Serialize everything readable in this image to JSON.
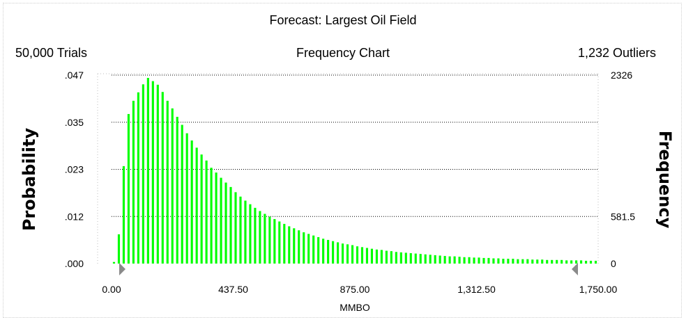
{
  "header": {
    "title": "Forecast: Largest Oil Field",
    "trials": "50,000 Trials",
    "subtitle": "Frequency Chart",
    "outliers": "1,232 Outliers"
  },
  "colors": {
    "bars": "#00ff00",
    "grid": "#000000",
    "markers": "#808080"
  },
  "chart_data": {
    "type": "bar",
    "title": "Forecast: Largest Oil Field",
    "subtitle": "Frequency Chart",
    "xlabel": "MMBO",
    "ylabel_left": "Probability",
    "ylabel_right": "Frequency",
    "xlim": [
      0,
      1750
    ],
    "ylim": [
      0,
      0.047
    ],
    "x_ticks": [
      "0.00",
      "437.50",
      "875.00",
      "1,312.50",
      "1,750.00"
    ],
    "y_ticks_left": [
      ".000",
      ".012",
      ".023",
      ".035",
      ".047"
    ],
    "y_ticks_right": [
      "0",
      "581.5",
      "2326"
    ],
    "grid": "dotted horizontal",
    "bin_width": 17.5,
    "series": [
      {
        "values": [
          0.0004,
          0.0073,
          0.0243,
          0.0373,
          0.0406,
          0.0427,
          0.0447,
          0.0463,
          0.0455,
          0.0446,
          0.0428,
          0.0406,
          0.0387,
          0.0366,
          0.0346,
          0.0325,
          0.0307,
          0.0289,
          0.0272,
          0.0257,
          0.0239,
          0.0227,
          0.0214,
          0.0202,
          0.0191,
          0.0178,
          0.0167,
          0.0157,
          0.0148,
          0.0139,
          0.0131,
          0.0124,
          0.0117,
          0.0111,
          0.0105,
          0.0099,
          0.0093,
          0.0088,
          0.0083,
          0.0078,
          0.0074,
          0.007,
          0.0066,
          0.0062,
          0.0059,
          0.0056,
          0.0053,
          0.005,
          0.0048,
          0.0046,
          0.0043,
          0.0041,
          0.0039,
          0.0037,
          0.0035,
          0.0034,
          0.0032,
          0.0031,
          0.0029,
          0.0028,
          0.0027,
          0.0026,
          0.0025,
          0.0024,
          0.0023,
          0.0022,
          0.0021,
          0.002,
          0.0019,
          0.0018,
          0.0018,
          0.0017,
          0.0016,
          0.0016,
          0.0015,
          0.0015,
          0.0014,
          0.0014,
          0.0013,
          0.0013,
          0.0012,
          0.0012,
          0.0012,
          0.0011,
          0.0011,
          0.0011,
          0.001,
          0.001,
          0.001,
          0.0009,
          0.0009,
          0.0009,
          0.0009,
          0.0008,
          0.0008,
          0.0008,
          0.0008,
          0.0007,
          0.0007,
          0.0007
        ]
      }
    ]
  }
}
